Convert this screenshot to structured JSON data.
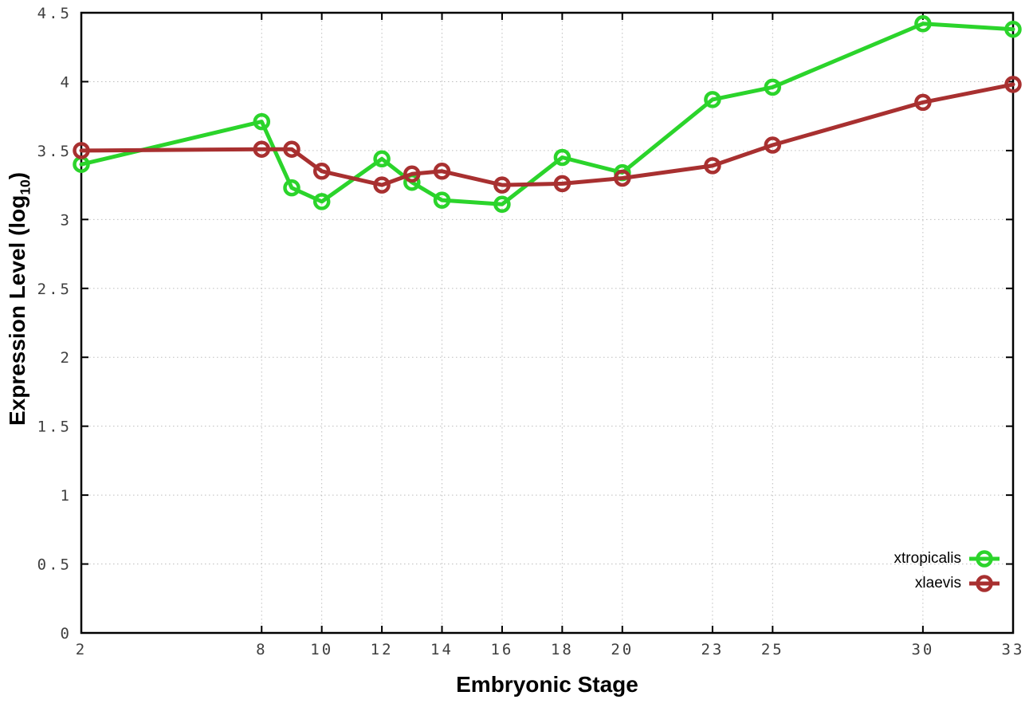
{
  "figure": {
    "xlabel": "Embryonic Stage",
    "ylabel_prefix": "Expression Level (log",
    "ylabel_sub": "10",
    "ylabel_suffix": ")"
  },
  "chart_data": {
    "type": "line",
    "title": "",
    "xlabel": "Embryonic Stage",
    "ylabel": "Expression Level (log10)",
    "x": [
      2,
      8,
      9,
      10,
      12,
      13,
      14,
      16,
      18,
      20,
      23,
      25,
      30,
      33
    ],
    "series": [
      {
        "name": "xtropicalis",
        "color": "#2bd42b",
        "values": [
          3.4,
          3.71,
          3.23,
          3.13,
          3.44,
          3.27,
          3.14,
          3.11,
          3.45,
          3.34,
          3.87,
          3.96,
          4.42,
          4.38
        ]
      },
      {
        "name": "xlaevis",
        "color": "#a83030",
        "values": [
          3.5,
          3.51,
          3.51,
          3.35,
          3.25,
          3.33,
          3.35,
          3.25,
          3.26,
          3.3,
          3.39,
          3.54,
          3.85,
          3.98
        ]
      }
    ],
    "xlim": [
      2,
      33
    ],
    "ylim": [
      0,
      4.5
    ],
    "xticks": [
      2,
      8,
      10,
      12,
      14,
      16,
      18,
      20,
      23,
      25,
      30,
      33
    ],
    "xtick_labels": [
      "2",
      "8",
      "10",
      "12",
      "14",
      "16",
      "18",
      "20",
      "23",
      "25",
      "30",
      "33"
    ],
    "yticks": [
      0,
      0.5,
      1,
      1.5,
      2,
      2.5,
      3,
      3.5,
      4,
      4.5
    ],
    "ytick_labels": [
      "0",
      "0.5",
      "1",
      "1.5",
      "2",
      "2.5",
      "3",
      "3.5",
      "4",
      "4.5"
    ],
    "grid": true,
    "grid_style": "dotted",
    "grid_color": "#bdbdbd",
    "border_color": "#000000",
    "marker": "open-circle",
    "legend_position": "bottom-right"
  }
}
